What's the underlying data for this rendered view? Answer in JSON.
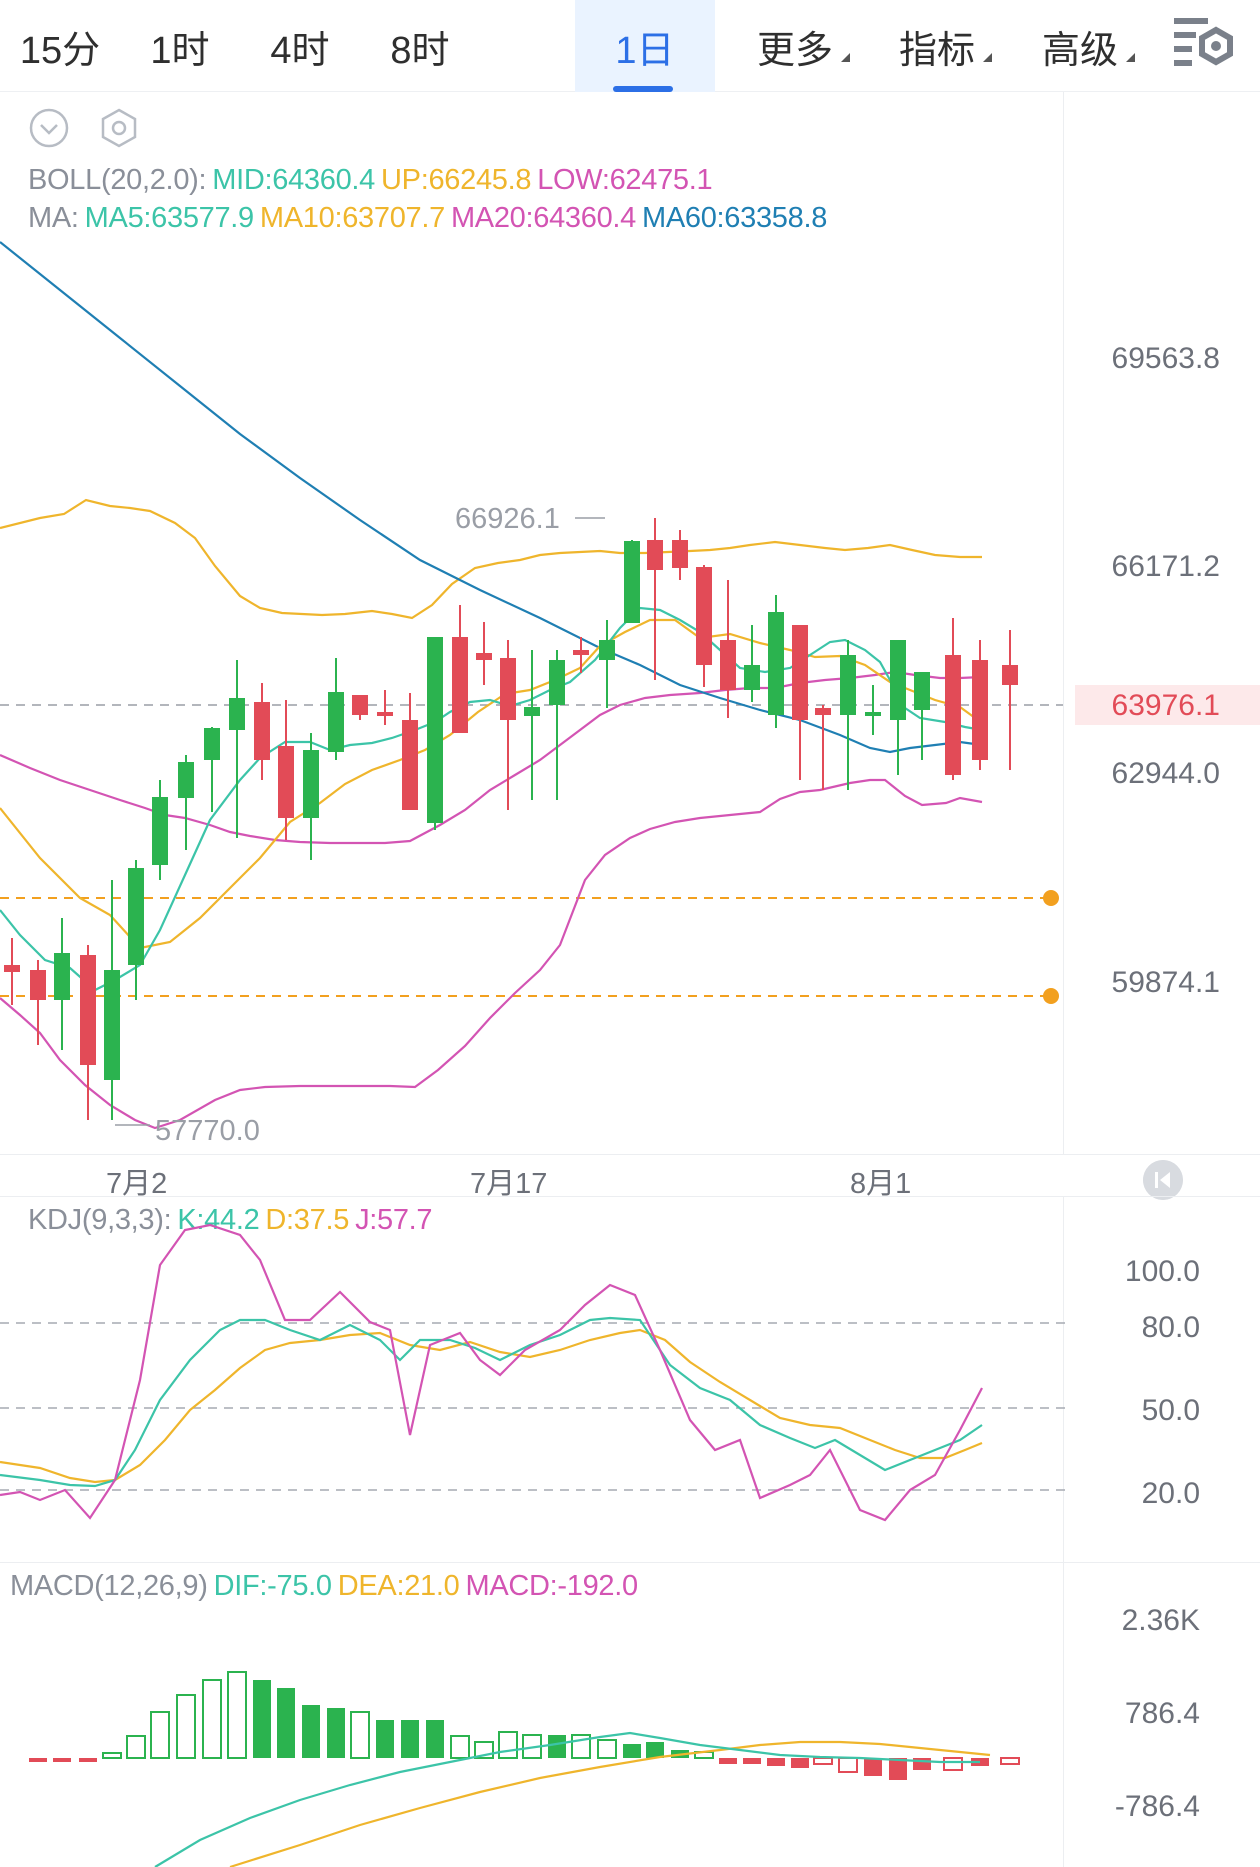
{
  "tabs": [
    {
      "label": "15分",
      "active": false,
      "dropdown": false
    },
    {
      "label": "1时",
      "active": false,
      "dropdown": false
    },
    {
      "label": "4时",
      "active": false,
      "dropdown": false
    },
    {
      "label": "8时",
      "active": false,
      "dropdown": false
    },
    {
      "label": "1日",
      "active": true,
      "dropdown": false
    },
    {
      "label": "更多",
      "active": false,
      "dropdown": true
    },
    {
      "label": "指标",
      "active": false,
      "dropdown": true
    },
    {
      "label": "高级",
      "active": false,
      "dropdown": true
    }
  ],
  "toolbar_icons": [
    "collapse-chevron-icon",
    "hexagon-settings-icon",
    "chart-settings-icon"
  ],
  "boll": {
    "title": "BOLL(20,2.0):",
    "mid": "MID:64360.4",
    "up": "UP:66245.8",
    "low": "LOW:62475.1"
  },
  "ma": {
    "title": "MA:",
    "ma5": "MA5:63577.9",
    "ma10": "MA10:63707.7",
    "ma20": "MA20:64360.4",
    "ma60": "MA60:63358.8"
  },
  "price_axis": [
    "69563.8",
    "66171.2",
    "63976.1",
    "62944.0",
    "59874.1"
  ],
  "current_price": "63976.1",
  "high_marker": "66926.1",
  "low_marker": "57770.0",
  "dates": [
    "7月2",
    "7月17",
    "8月1"
  ],
  "kdj": {
    "title": "KDJ(9,3,3):",
    "k": "K:44.2",
    "d": "D:37.5",
    "j": "J:57.7",
    "axis": [
      "100.0",
      "80.0",
      "50.0",
      "20.0"
    ]
  },
  "macd": {
    "title": "MACD(12,26,9)",
    "dif": "DIF:-75.0",
    "dea": "DEA:21.0",
    "macd": "MACD:-192.0",
    "axis": [
      "2.36K",
      "786.4",
      "-786.4"
    ]
  },
  "colors": {
    "up": "#2bb34f",
    "down": "#e24b57",
    "accent": "#2c6fe6",
    "boll_band": "#efb52c",
    "boll_mid": "#d354b3",
    "ma5": "#3cc4a8",
    "ma10": "#efb52c",
    "ma20": "#d354b3",
    "ma60": "#1f7fb3",
    "alert_line": "#f2a01f"
  }
}
